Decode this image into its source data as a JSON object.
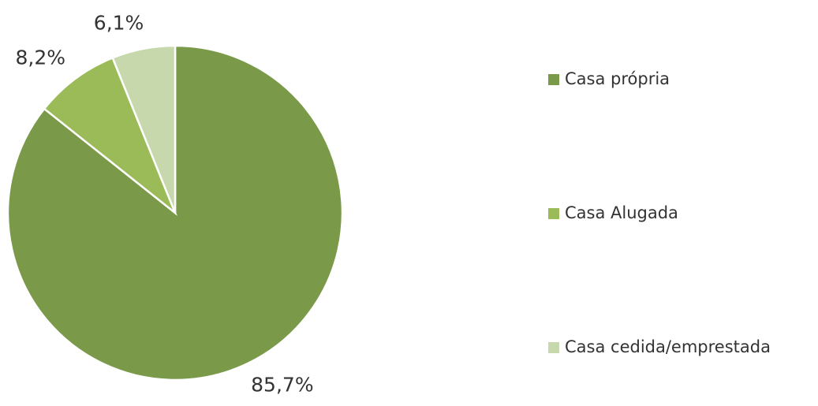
{
  "chart_data": {
    "type": "pie",
    "categories": [
      "Casa própria",
      "Casa Alugada",
      "Casa cedida/emprestada"
    ],
    "values": [
      85.7,
      8.2,
      6.1
    ],
    "value_labels": [
      "85,7%",
      "8,2%",
      "6,1%"
    ],
    "colors": [
      "#7a9a4a",
      "#9bbb59",
      "#c6d8ac"
    ],
    "legend": "right"
  }
}
